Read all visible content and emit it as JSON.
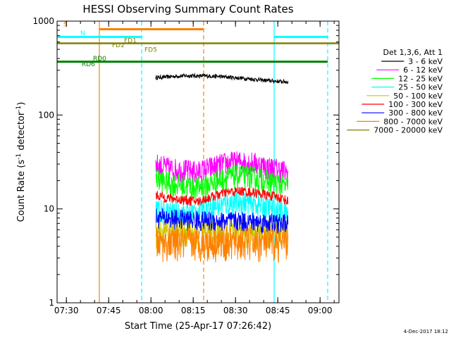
{
  "chart_data": {
    "type": "line",
    "title": "HESSI Observing Summary Count Rates",
    "xlabel": "Start Time (25-Apr-17 07:26:42)",
    "ylabel_main": "Count Rate (s",
    "ylabel_sup1": "-1",
    "ylabel_mid": " detector",
    "ylabel_sup2": "-1",
    "ylabel_end": ")",
    "yscale": "log",
    "ylim": [
      1,
      1000
    ],
    "xlim_minutes": [
      0,
      100
    ],
    "yticks": [
      {
        "v": 1,
        "label": "1"
      },
      {
        "v": 10,
        "label": "10"
      },
      {
        "v": 100,
        "label": "100"
      },
      {
        "v": 1000,
        "label": "1000"
      }
    ],
    "xticks": [
      {
        "m": 3.3,
        "label": "07:30"
      },
      {
        "m": 18.3,
        "label": "07:45"
      },
      {
        "m": 33.3,
        "label": "08:00"
      },
      {
        "m": 48.3,
        "label": "08:15"
      },
      {
        "m": 63.3,
        "label": "08:30"
      },
      {
        "m": 78.3,
        "label": "08:45"
      },
      {
        "m": 93.3,
        "label": "09:00"
      }
    ],
    "legend_header": "Det 1,3,6, Att 1",
    "series": [
      {
        "name": "3 - 6 keV",
        "color": "#000000",
        "start": 35,
        "end": 82,
        "x": [
          35,
          45,
          55,
          65,
          75,
          82
        ],
        "y": [
          250,
          262,
          260,
          248,
          232,
          225
        ],
        "noise": 0.05
      },
      {
        "name": "6 - 12 keV",
        "color": "#ff00ff",
        "start": 35,
        "end": 82,
        "x": [
          35,
          40,
          45,
          50,
          55,
          60,
          65,
          70,
          75,
          80,
          82
        ],
        "y": [
          30,
          27,
          26,
          25,
          28,
          31,
          32,
          31,
          28,
          26,
          24
        ],
        "noise": 0.3
      },
      {
        "name": "12 - 25 keV",
        "color": "#00ff00",
        "start": 35,
        "end": 82,
        "x": [
          35,
          40,
          45,
          50,
          55,
          60,
          65,
          70,
          75,
          80,
          82
        ],
        "y": [
          21,
          19,
          18,
          17,
          19,
          22,
          23,
          22,
          20,
          18,
          17
        ],
        "noise": 0.3
      },
      {
        "name": "25 - 50 keV",
        "color": "#00ffff",
        "start": 35,
        "end": 82,
        "x": [
          35,
          40,
          45,
          50,
          55,
          60,
          65,
          70,
          75,
          80,
          82
        ],
        "y": [
          10,
          9.2,
          9,
          9.5,
          10.5,
          11.5,
          12,
          11.5,
          10.5,
          9.5,
          9
        ],
        "noise": 0.3
      },
      {
        "name": "50 - 100 keV",
        "color": "#cccc00",
        "start": 35,
        "end": 82,
        "x": [
          35,
          45,
          55,
          65,
          75,
          82
        ],
        "y": [
          5.8,
          5.8,
          5.7,
          5.8,
          5.7,
          5.7
        ],
        "noise": 0.35
      },
      {
        "name": "100 - 300 keV",
        "color": "#ff0000",
        "start": 35,
        "end": 82,
        "x": [
          35,
          40,
          45,
          50,
          55,
          60,
          65,
          70,
          75,
          80,
          82
        ],
        "y": [
          14,
          13,
          12.5,
          12,
          13.5,
          15,
          15.5,
          15,
          14,
          13,
          12
        ],
        "noise": 0.12
      },
      {
        "name": "300 - 800 keV",
        "color": "#0000ff",
        "start": 35,
        "end": 82,
        "x": [
          35,
          45,
          55,
          65,
          75,
          82
        ],
        "y": [
          8.2,
          7.8,
          7.5,
          7.5,
          7.2,
          7
        ],
        "noise": 0.25
      },
      {
        "name": "800 - 7000 keV",
        "color": "#ff8000",
        "start": 35,
        "end": 82,
        "x": [
          35,
          45,
          55,
          65,
          75,
          82
        ],
        "y": [
          4.5,
          4.5,
          4.5,
          4.5,
          4.4,
          4.4
        ],
        "noise": 0.4
      },
      {
        "name": "7000 - 20000 keV",
        "color": "#808000",
        "start": 0,
        "end": 100,
        "x": [
          0,
          100
        ],
        "y": [
          580,
          580
        ],
        "noise": 0
      }
    ],
    "overlays": {
      "vlines": [
        {
          "m": 0,
          "color": "#00ffff",
          "dash": false
        },
        {
          "m": 15,
          "color": "#ff8000",
          "dash": false
        },
        {
          "m": 30,
          "color": "#00ffff",
          "dash": true
        },
        {
          "m": 52,
          "color": "#ff8000",
          "dash": true
        },
        {
          "m": 77,
          "color": "#00ffff",
          "dash": false
        },
        {
          "m": 96,
          "color": "#00ffff",
          "dash": true
        }
      ],
      "hlines": [
        {
          "m0": 0,
          "m1": 30,
          "v": 680,
          "color": "#00ffff",
          "width": 3
        },
        {
          "m0": 77,
          "m1": 96,
          "v": 680,
          "color": "#00ffff",
          "width": 3
        },
        {
          "m0": 15,
          "m1": 52,
          "v": 820,
          "color": "#ff8000",
          "width": 3
        },
        {
          "m0": 0,
          "m1": 96,
          "v": 370,
          "color": "#008000",
          "width": 3
        }
      ],
      "labels": [
        {
          "m": 9,
          "v": 880,
          "text": "S",
          "color": "#ff8000"
        },
        {
          "m": 33,
          "v": 710,
          "text": "N",
          "color": "#00ffff"
        },
        {
          "m": 95,
          "v": 590,
          "text": "FD1",
          "color": "#808000"
        },
        {
          "m": 78,
          "v": 530,
          "text": "FD2",
          "color": "#808000"
        },
        {
          "m": 124,
          "v": 470,
          "text": "FD5",
          "color": "#808000"
        },
        {
          "m": 51,
          "v": 380,
          "text": "RD0",
          "color": "#008000"
        },
        {
          "m": 35,
          "v": 330,
          "text": "RD6",
          "color": "#008000"
        }
      ]
    }
  },
  "footer_date": "4-Dec-2017 18:12"
}
